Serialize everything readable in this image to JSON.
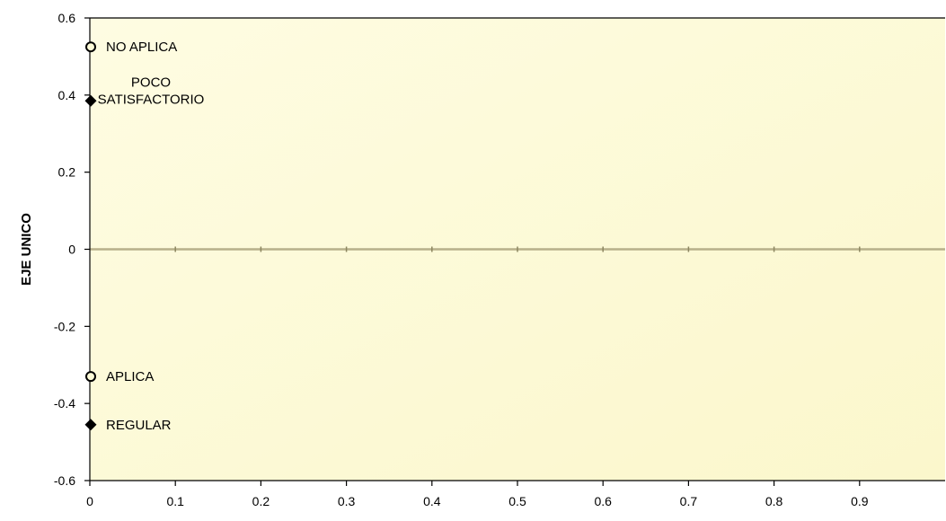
{
  "chart_data": {
    "type": "scatter",
    "ylabel": "EJE UNICO",
    "xlabel": "",
    "xlim": [
      0,
      1
    ],
    "ylim": [
      -0.6,
      0.6
    ],
    "x_ticks": [
      "0",
      "0.1",
      "0.2",
      "0.3",
      "0.4",
      "0.5",
      "0.6",
      "0.7",
      "0.8",
      "0.9"
    ],
    "y_ticks": [
      "0.6",
      "0.4",
      "0.2",
      "0",
      "-0.2",
      "-0.4",
      "-0.6"
    ],
    "points": [
      {
        "label_lines": [
          "NO APLICA"
        ],
        "x": 0,
        "y": 0.525,
        "marker": "open-circle"
      },
      {
        "label_lines": [
          "POCO",
          "SATISFACTORIO"
        ],
        "x": 0,
        "y": 0.385,
        "marker": "filled-diamond"
      },
      {
        "label_lines": [
          "APLICA"
        ],
        "x": 0,
        "y": -0.33,
        "marker": "open-circle"
      },
      {
        "label_lines": [
          "REGULAR"
        ],
        "x": 0,
        "y": -0.455,
        "marker": "filled-diamond"
      }
    ],
    "colors": {
      "plot_background": "#fdfbd8",
      "zero_line": "#b7b08a",
      "axis": "#000000"
    }
  }
}
